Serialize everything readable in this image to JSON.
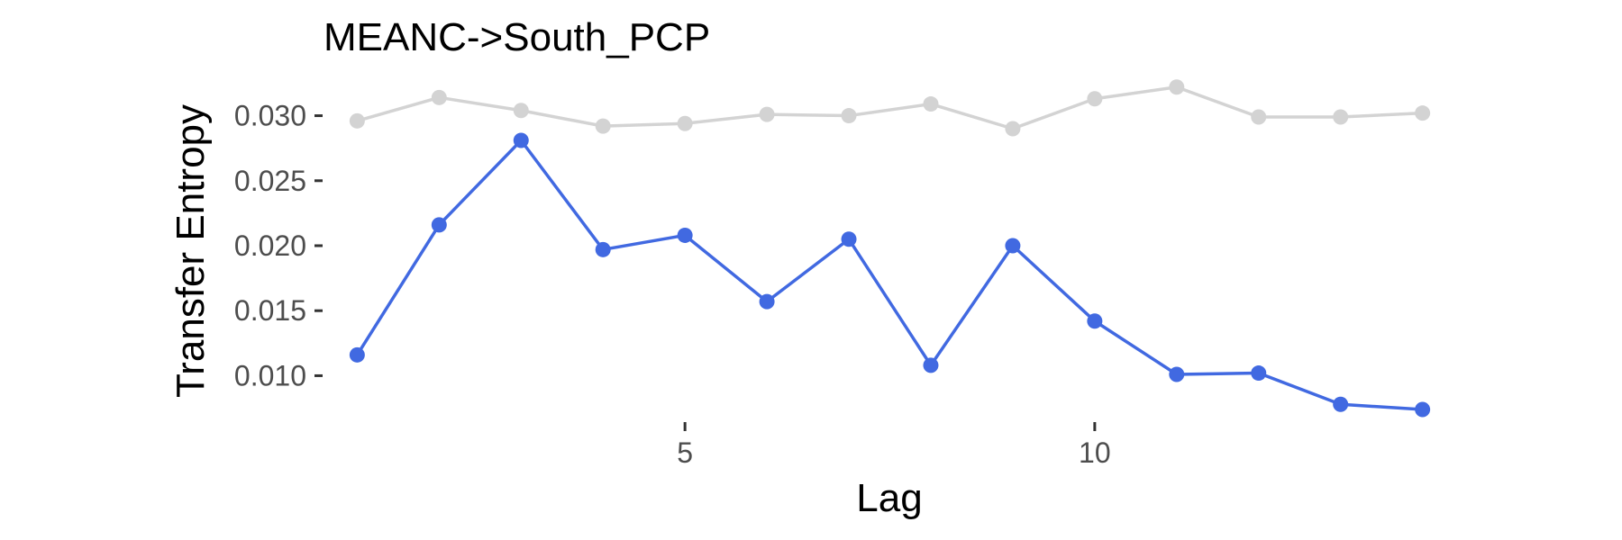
{
  "chart_data": {
    "type": "line",
    "title": "MEANC->South_PCP",
    "xlabel": "Lag",
    "ylabel": "Transfer Entropy",
    "x": [
      1,
      2,
      3,
      4,
      5,
      6,
      7,
      8,
      9,
      10,
      11,
      12,
      13,
      14
    ],
    "xlim": [
      0.6,
      14.4
    ],
    "ylim": [
      0.0065,
      0.0335
    ],
    "x_ticks": [
      5,
      10
    ],
    "x_tick_labels": [
      "5",
      "10"
    ],
    "y_ticks": [
      0.01,
      0.015,
      0.02,
      0.025,
      0.03
    ],
    "y_tick_labels": [
      "0.010",
      "0.015",
      "0.020",
      "0.025",
      "0.030"
    ],
    "grid": false,
    "legend": "none",
    "series": [
      {
        "color": "#d3d3d3",
        "values": [
          0.0296,
          0.0314,
          0.0304,
          0.0292,
          0.0294,
          0.0301,
          0.03,
          0.0309,
          0.029,
          0.0313,
          0.0322,
          0.0299,
          0.0299,
          0.0302
        ]
      },
      {
        "color": "#4169e1",
        "values": [
          0.0116,
          0.0216,
          0.0281,
          0.0197,
          0.0208,
          0.0157,
          0.0205,
          0.0108,
          0.02,
          0.0142,
          0.0101,
          0.0102,
          0.0078,
          0.0074
        ]
      }
    ]
  }
}
